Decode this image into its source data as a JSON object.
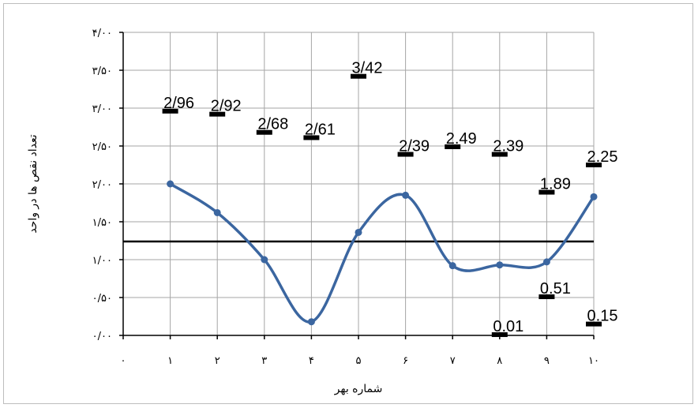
{
  "chart_data": {
    "type": "line",
    "xlabel": "شماره بهر",
    "ylabel": "تعداد نقص ها در واحد",
    "ylim": [
      0,
      4
    ],
    "x_ticks": [
      "۰",
      "۱",
      "۲",
      "۳",
      "۴",
      "۵",
      "۶",
      "۷",
      "۸",
      "۹",
      "۱۰"
    ],
    "y_ticks": [
      "۰/۰۰",
      "۰/۵۰",
      "۱/۰۰",
      "۱/۵۰",
      "۲/۰۰",
      "۲/۵۰",
      "۳/۰۰",
      "۳/۵۰",
      "۴/۰۰"
    ],
    "grid": true,
    "reference_line": 1.24,
    "series": [
      {
        "type": "line",
        "x": [
          1,
          2,
          3,
          4,
          5,
          6,
          7,
          8,
          9,
          10
        ],
        "values": [
          2.0,
          1.62,
          1.0,
          0.18,
          1.36,
          1.85,
          0.92,
          0.93,
          0.97,
          1.83
        ]
      },
      {
        "type": "marker",
        "x": [
          1,
          2,
          3,
          4,
          5,
          6,
          7,
          8,
          9,
          10
        ],
        "values": [
          2.96,
          2.92,
          2.68,
          2.61,
          3.42,
          2.39,
          2.49,
          2.39,
          1.89,
          2.25
        ],
        "labels": [
          "2/96",
          "2/92",
          "2/68",
          "2/61",
          "3/42",
          "2/39",
          "2.49",
          "2.39",
          "1.89",
          "2.25"
        ]
      },
      {
        "type": "marker",
        "x": [
          8,
          9,
          10
        ],
        "values": [
          0.01,
          0.51,
          0.15
        ],
        "labels": [
          "0.01",
          "0.51",
          "0.15"
        ]
      }
    ]
  }
}
